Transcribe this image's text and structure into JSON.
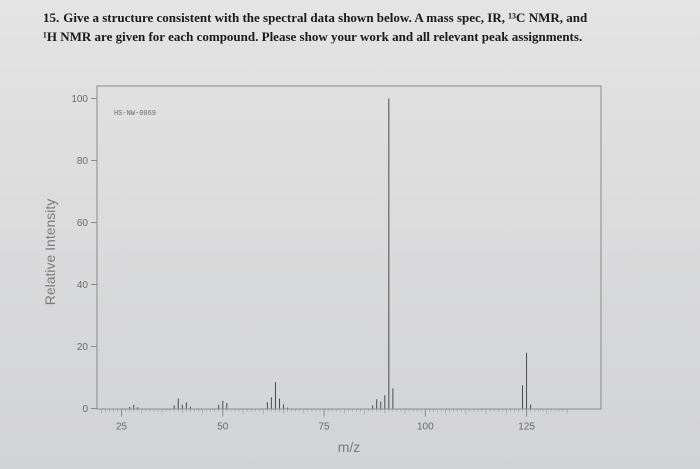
{
  "question": {
    "number": "15.",
    "line1": "Give a structure consistent with the spectral data shown below.  A mass spec, IR, ¹³C NMR, and",
    "line2": "¹H NMR are given for each compound.  Please show your work and all relevant peak assignments."
  },
  "chart_data": {
    "type": "bar",
    "title": "",
    "annotation": "HS-NW-0069",
    "xlabel": "m/z",
    "ylabel": "Relative Intensity",
    "xlim": [
      0,
      140
    ],
    "ylim": [
      0,
      100
    ],
    "x_ticks": [
      "25",
      "50",
      "75",
      "100",
      "125"
    ],
    "y_ticks": [
      "0",
      "20",
      "40",
      "60",
      "80",
      "100"
    ],
    "grid": false,
    "x": [
      27,
      28,
      29,
      38,
      39,
      40,
      41,
      42,
      49,
      50,
      51,
      61,
      62,
      63,
      64,
      65,
      66,
      87,
      88,
      89,
      90,
      91,
      92,
      124,
      125,
      126
    ],
    "values": [
      0.5,
      1.2,
      0.4,
      1.0,
      3.2,
      1.2,
      2.0,
      0.6,
      1.2,
      2.5,
      1.8,
      2.0,
      3.6,
      8.5,
      3.2,
      1.3,
      0.3,
      1.0,
      3.0,
      2.2,
      4.3,
      100,
      6.5,
      7.5,
      18.0,
      1.3
    ]
  }
}
